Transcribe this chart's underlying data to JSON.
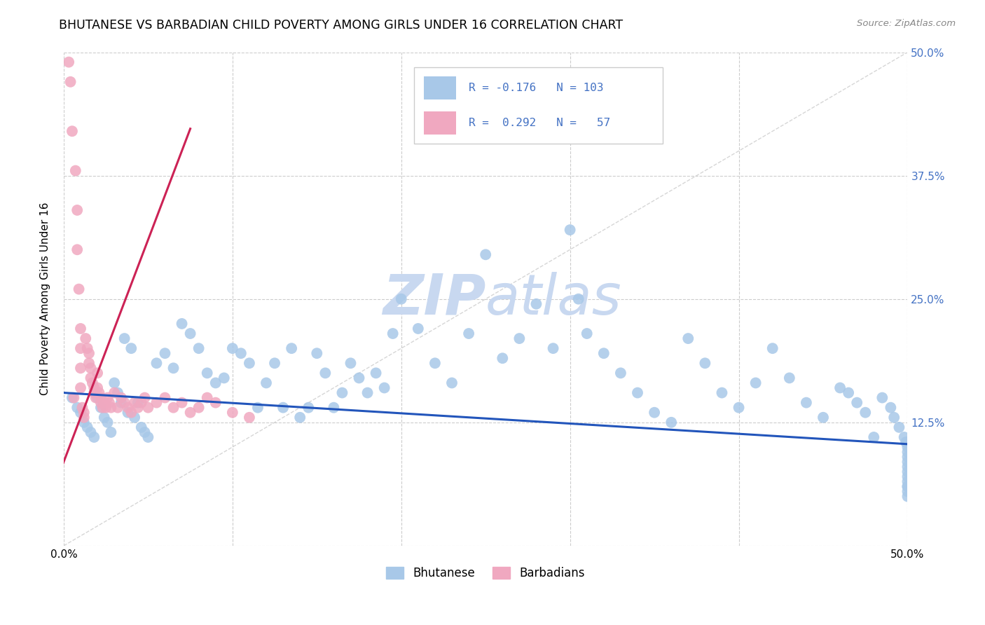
{
  "title": "BHUTANESE VS BARBADIAN CHILD POVERTY AMONG GIRLS UNDER 16 CORRELATION CHART",
  "source": "Source: ZipAtlas.com",
  "ylabel": "Child Poverty Among Girls Under 16",
  "yticks": [
    0.0,
    0.125,
    0.25,
    0.375,
    0.5
  ],
  "ytick_labels_right": [
    "",
    "12.5%",
    "25.0%",
    "37.5%",
    "50.0%"
  ],
  "xticks": [
    0.0,
    0.1,
    0.2,
    0.3,
    0.4,
    0.5
  ],
  "xtick_labels": [
    "0.0%",
    "",
    "",
    "",
    "",
    "50.0%"
  ],
  "xlim": [
    0.0,
    0.5
  ],
  "ylim": [
    0.0,
    0.5
  ],
  "blue_R": -0.176,
  "blue_N": 103,
  "pink_R": 0.292,
  "pink_N": 57,
  "blue_color": "#a8c8e8",
  "pink_color": "#f0a8c0",
  "blue_line_color": "#2255bb",
  "pink_line_color": "#cc2255",
  "diagonal_color": "#cccccc",
  "watermark_color": "#c8d8f0",
  "legend_blue_label": "Bhutanese",
  "legend_pink_label": "Barbadians",
  "title_fontsize": 12.5,
  "axis_label_fontsize": 11,
  "tick_fontsize": 11,
  "right_tick_color": "#4472c4",
  "legend_text_color": "#4472c4",
  "blue_x": [
    0.005,
    0.008,
    0.01,
    0.012,
    0.014,
    0.016,
    0.018,
    0.02,
    0.022,
    0.024,
    0.026,
    0.028,
    0.03,
    0.032,
    0.034,
    0.036,
    0.038,
    0.04,
    0.042,
    0.044,
    0.046,
    0.048,
    0.05,
    0.055,
    0.06,
    0.065,
    0.07,
    0.075,
    0.08,
    0.085,
    0.09,
    0.095,
    0.1,
    0.105,
    0.11,
    0.115,
    0.12,
    0.125,
    0.13,
    0.135,
    0.14,
    0.145,
    0.15,
    0.155,
    0.16,
    0.165,
    0.17,
    0.175,
    0.18,
    0.185,
    0.19,
    0.195,
    0.2,
    0.21,
    0.22,
    0.23,
    0.24,
    0.25,
    0.26,
    0.27,
    0.28,
    0.29,
    0.3,
    0.305,
    0.31,
    0.32,
    0.33,
    0.34,
    0.35,
    0.36,
    0.37,
    0.38,
    0.39,
    0.4,
    0.41,
    0.42,
    0.43,
    0.44,
    0.45,
    0.46,
    0.465,
    0.47,
    0.475,
    0.48,
    0.485,
    0.49,
    0.492,
    0.495,
    0.498,
    0.499,
    0.5,
    0.5,
    0.5,
    0.5,
    0.5,
    0.5,
    0.5,
    0.5,
    0.5,
    0.5,
    0.5,
    0.5,
    0.5
  ],
  "blue_y": [
    0.15,
    0.14,
    0.135,
    0.125,
    0.12,
    0.115,
    0.11,
    0.15,
    0.14,
    0.13,
    0.125,
    0.115,
    0.165,
    0.155,
    0.145,
    0.21,
    0.135,
    0.2,
    0.13,
    0.145,
    0.12,
    0.115,
    0.11,
    0.185,
    0.195,
    0.18,
    0.225,
    0.215,
    0.2,
    0.175,
    0.165,
    0.17,
    0.2,
    0.195,
    0.185,
    0.14,
    0.165,
    0.185,
    0.14,
    0.2,
    0.13,
    0.14,
    0.195,
    0.175,
    0.14,
    0.155,
    0.185,
    0.17,
    0.155,
    0.175,
    0.16,
    0.215,
    0.25,
    0.22,
    0.185,
    0.165,
    0.215,
    0.295,
    0.19,
    0.21,
    0.245,
    0.2,
    0.32,
    0.25,
    0.215,
    0.195,
    0.175,
    0.155,
    0.135,
    0.125,
    0.21,
    0.185,
    0.155,
    0.14,
    0.165,
    0.2,
    0.17,
    0.145,
    0.13,
    0.16,
    0.155,
    0.145,
    0.135,
    0.11,
    0.15,
    0.14,
    0.13,
    0.12,
    0.11,
    0.105,
    0.105,
    0.1,
    0.095,
    0.09,
    0.085,
    0.08,
    0.075,
    0.07,
    0.065,
    0.06,
    0.06,
    0.055,
    0.05
  ],
  "pink_x": [
    0.003,
    0.004,
    0.005,
    0.006,
    0.007,
    0.008,
    0.008,
    0.009,
    0.01,
    0.01,
    0.01,
    0.01,
    0.011,
    0.012,
    0.012,
    0.013,
    0.014,
    0.015,
    0.015,
    0.016,
    0.016,
    0.017,
    0.018,
    0.018,
    0.019,
    0.02,
    0.02,
    0.021,
    0.022,
    0.022,
    0.023,
    0.024,
    0.025,
    0.026,
    0.027,
    0.028,
    0.03,
    0.032,
    0.034,
    0.036,
    0.038,
    0.04,
    0.042,
    0.044,
    0.046,
    0.048,
    0.05,
    0.055,
    0.06,
    0.065,
    0.07,
    0.075,
    0.08,
    0.085,
    0.09,
    0.1,
    0.11
  ],
  "pink_y": [
    0.49,
    0.47,
    0.42,
    0.15,
    0.38,
    0.34,
    0.3,
    0.26,
    0.22,
    0.2,
    0.18,
    0.16,
    0.14,
    0.135,
    0.13,
    0.21,
    0.2,
    0.195,
    0.185,
    0.18,
    0.17,
    0.165,
    0.16,
    0.155,
    0.15,
    0.175,
    0.16,
    0.155,
    0.15,
    0.145,
    0.14,
    0.145,
    0.14,
    0.15,
    0.145,
    0.14,
    0.155,
    0.14,
    0.15,
    0.145,
    0.14,
    0.135,
    0.145,
    0.14,
    0.145,
    0.15,
    0.14,
    0.145,
    0.15,
    0.14,
    0.145,
    0.135,
    0.14,
    0.15,
    0.145,
    0.135,
    0.13
  ],
  "pink_line_x0": -0.01,
  "pink_line_x1": 0.075,
  "blue_line_y0": 0.155,
  "blue_line_y1": 0.103
}
